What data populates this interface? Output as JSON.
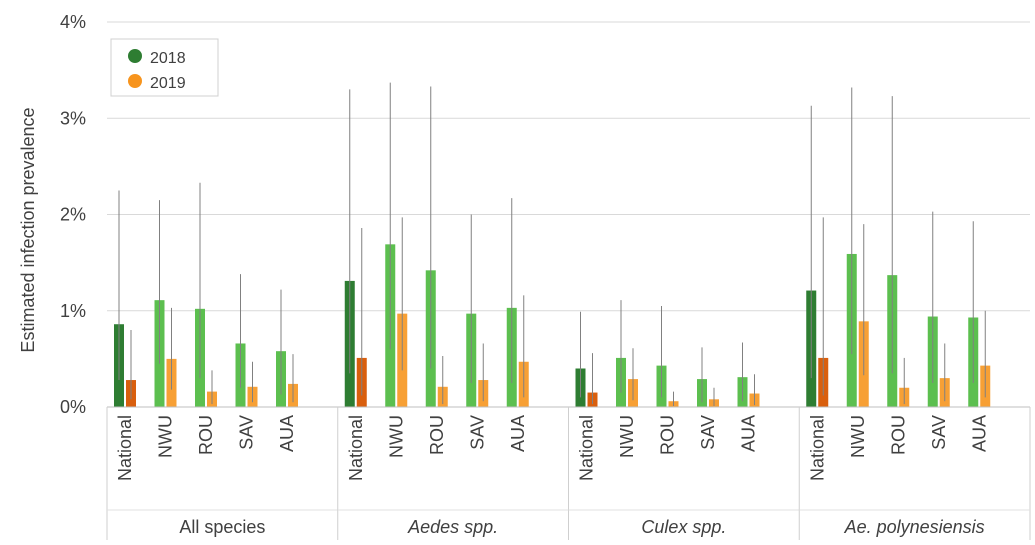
{
  "chart_data": {
    "type": "bar",
    "ylabel": "Estimated infection prevalence",
    "ylim": [
      0,
      4
    ],
    "yticks": [
      "0%",
      "1%",
      "2%",
      "3%",
      "4%"
    ],
    "grid": true,
    "legend": {
      "placement": "top-left",
      "entries": [
        "2018",
        "2019"
      ]
    },
    "colors": {
      "national_2018": "#2e7d32",
      "national_2019": "#d95f0e",
      "region_2018": "#5cbf4f",
      "region_2019": "#f7a035",
      "legend_2018": "#2e7d32",
      "legend_2019": "#f7941d",
      "error": "#808080",
      "grid": "#d9d9d9"
    },
    "groups": [
      {
        "name": "All species",
        "italic": false,
        "categories": [
          "National",
          "NWU",
          "ROU",
          "SAV",
          "AUA"
        ],
        "series": [
          {
            "name": "2018",
            "values": [
              0.86,
              1.11,
              1.02,
              0.66,
              0.58
            ],
            "ci_low": [
              0.28,
              0.45,
              0.3,
              0.2,
              0.13
            ],
            "ci_high": [
              2.25,
              2.15,
              2.33,
              1.38,
              1.22
            ]
          },
          {
            "name": "2019",
            "values": [
              0.28,
              0.5,
              0.16,
              0.21,
              0.24
            ],
            "ci_low": [
              0.08,
              0.18,
              0.03,
              0.05,
              0.05
            ],
            "ci_high": [
              0.8,
              1.03,
              0.38,
              0.47,
              0.55
            ]
          }
        ]
      },
      {
        "name": "Aedes spp.",
        "italic": true,
        "categories": [
          "National",
          "NWU",
          "ROU",
          "SAV",
          "AUA"
        ],
        "series": [
          {
            "name": "2018",
            "values": [
              1.31,
              1.69,
              1.42,
              0.97,
              1.03
            ],
            "ci_low": [
              0.35,
              0.6,
              0.4,
              0.25,
              0.25
            ],
            "ci_high": [
              3.3,
              3.37,
              3.33,
              2.0,
              2.17
            ]
          },
          {
            "name": "2019",
            "values": [
              0.51,
              0.97,
              0.21,
              0.28,
              0.47
            ],
            "ci_low": [
              0.12,
              0.38,
              0.03,
              0.06,
              0.1
            ],
            "ci_high": [
              1.86,
              1.97,
              0.53,
              0.66,
              1.16
            ]
          }
        ]
      },
      {
        "name": "Culex spp.",
        "italic": true,
        "categories": [
          "National",
          "NWU",
          "ROU",
          "SAV",
          "AUA"
        ],
        "series": [
          {
            "name": "2018",
            "values": [
              0.4,
              0.51,
              0.43,
              0.29,
              0.31
            ],
            "ci_low": [
              0.1,
              0.15,
              0.1,
              0.05,
              0.06
            ],
            "ci_high": [
              0.99,
              1.11,
              1.05,
              0.62,
              0.67
            ]
          },
          {
            "name": "2019",
            "values": [
              0.15,
              0.29,
              0.06,
              0.08,
              0.14
            ],
            "ci_low": [
              0.03,
              0.07,
              0.01,
              0.01,
              0.02
            ],
            "ci_high": [
              0.56,
              0.61,
              0.16,
              0.2,
              0.34
            ]
          }
        ]
      },
      {
        "name": "Ae. polynesiensis",
        "italic": true,
        "categories": [
          "National",
          "NWU",
          "ROU",
          "SAV",
          "AUA"
        ],
        "series": [
          {
            "name": "2018",
            "values": [
              1.21,
              1.59,
              1.37,
              0.94,
              0.93
            ],
            "ci_low": [
              0.3,
              0.55,
              0.35,
              0.25,
              0.25
            ],
            "ci_high": [
              3.13,
              3.32,
              3.23,
              2.03,
              1.93
            ]
          },
          {
            "name": "2019",
            "values": [
              0.51,
              0.89,
              0.2,
              0.3,
              0.43
            ],
            "ci_low": [
              0.12,
              0.33,
              0.03,
              0.06,
              0.1
            ],
            "ci_high": [
              1.97,
              1.9,
              0.51,
              0.66,
              1.0
            ]
          }
        ]
      }
    ]
  }
}
